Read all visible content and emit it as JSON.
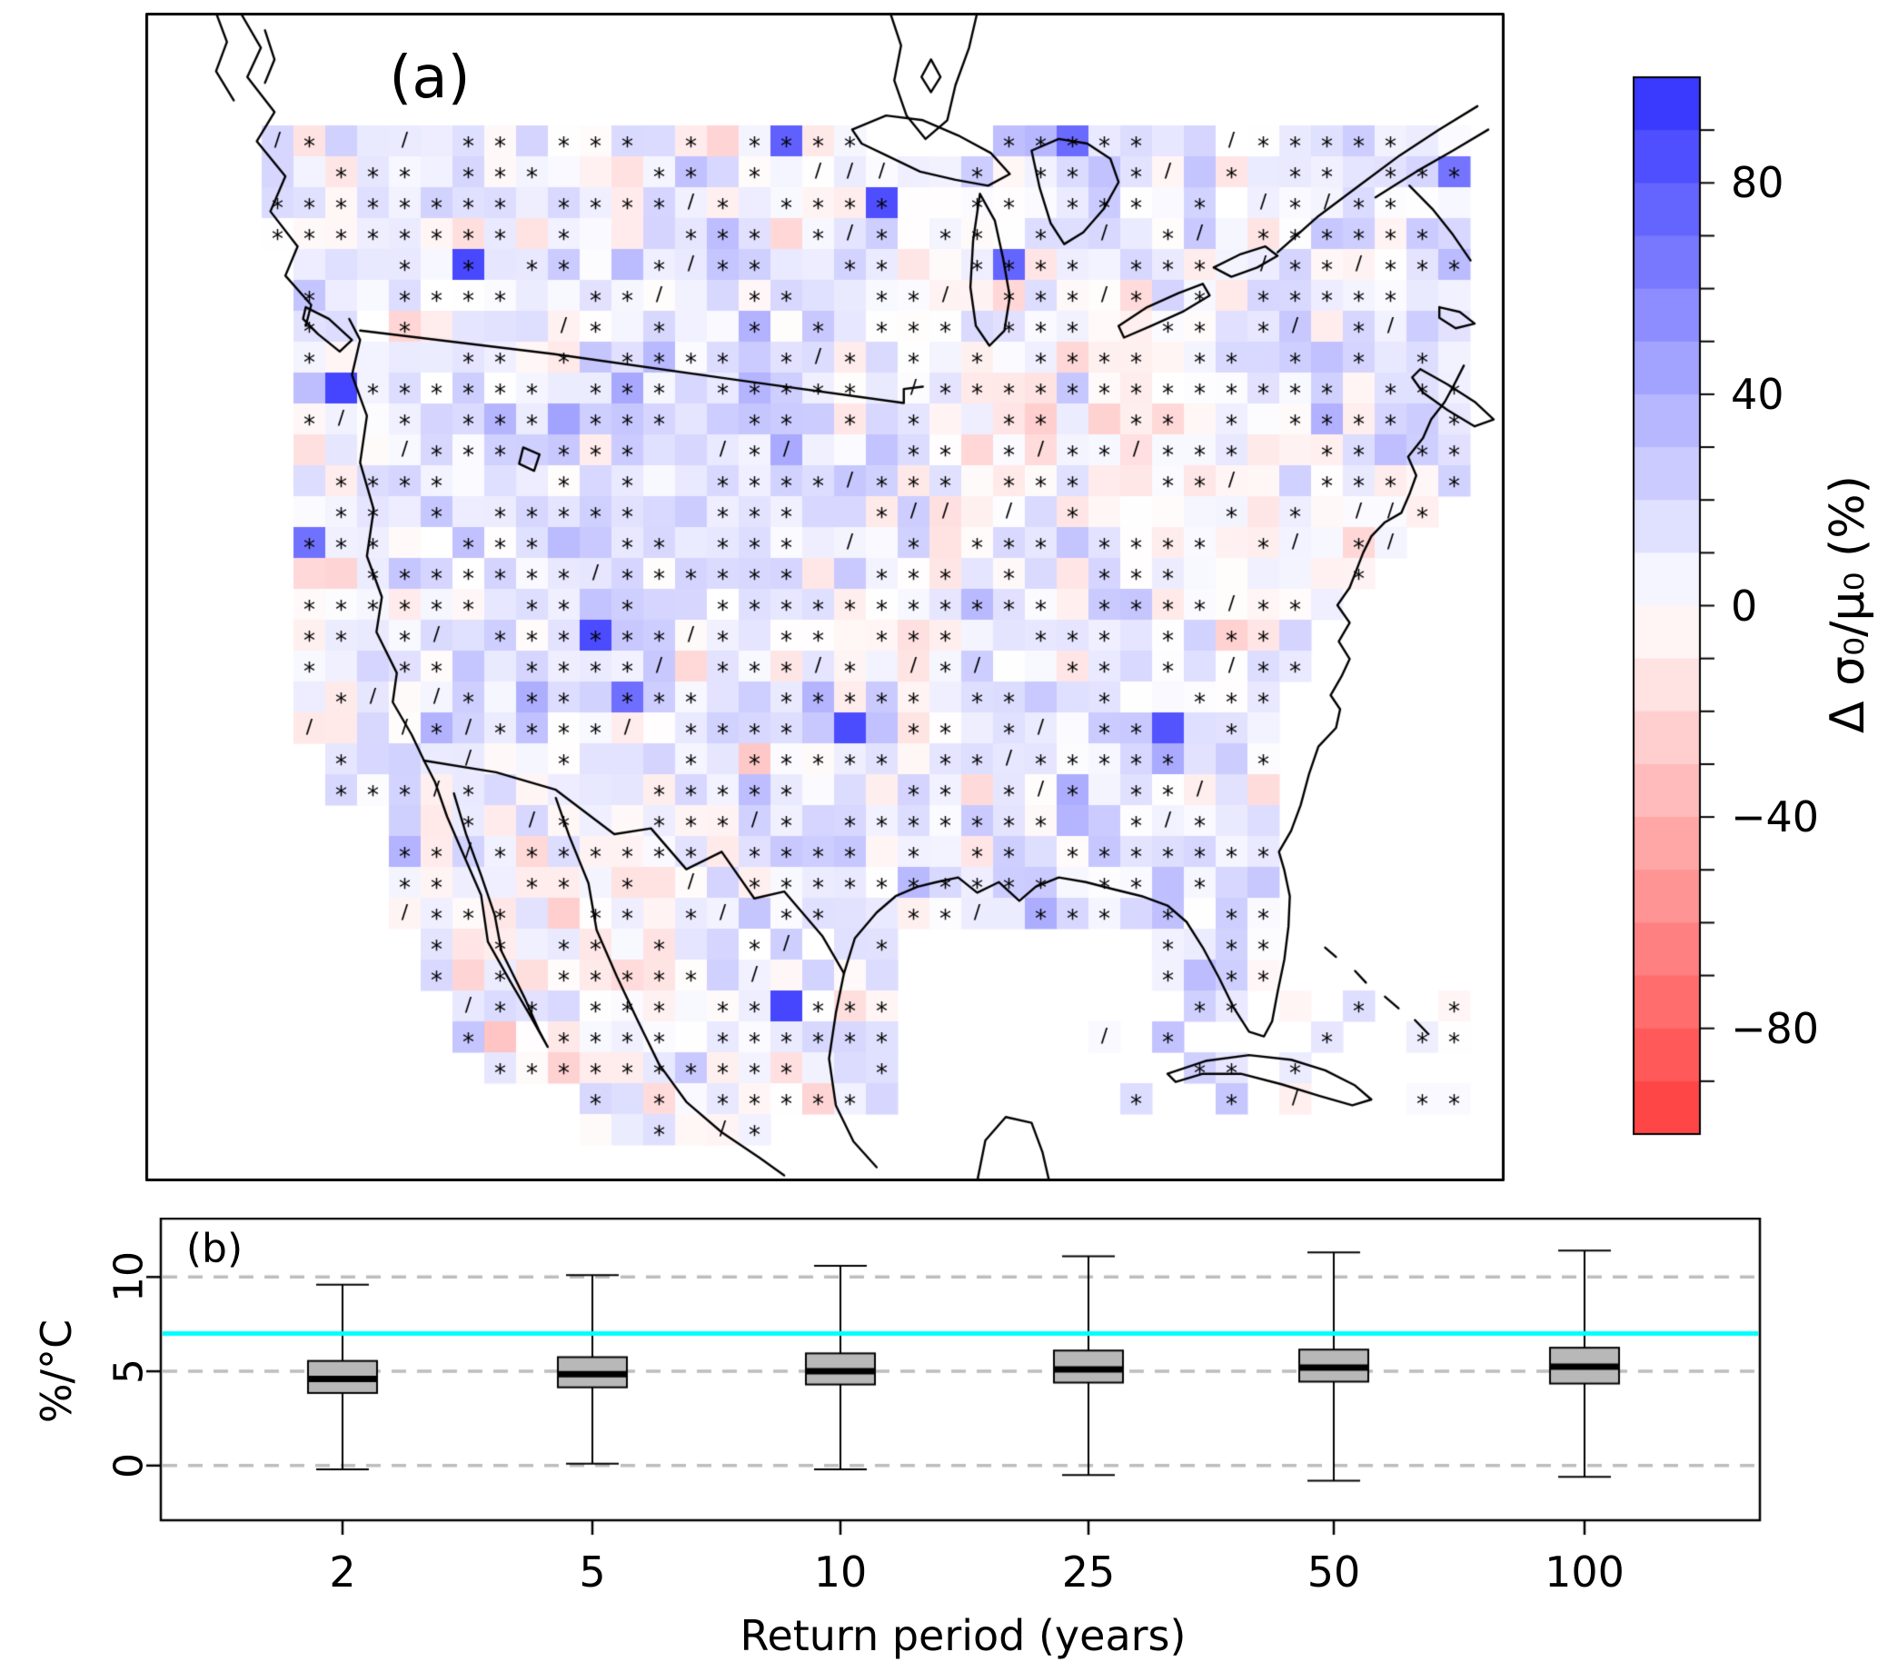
{
  "figure": {
    "panel_a_label": "(a)",
    "panel_b_label": "(b)"
  },
  "chart_data": [
    {
      "type": "heatmap",
      "title": "",
      "panel": "a",
      "description_text": "",
      "significance_markers": [
        "*",
        "/"
      ],
      "colorbar": {
        "label": "Δ σ₀/μ₀ (%)",
        "tick_values": [
          80,
          40,
          0,
          -40,
          -80
        ],
        "tick_labels": [
          "80",
          "40",
          "0",
          "−40",
          "−80"
        ],
        "minor_tick_interval": 10,
        "vmin": -100,
        "vmax": 100,
        "positive_color": "#2020ff",
        "zero_color": "#ffffff",
        "negative_color": "#ff2020"
      }
    },
    {
      "type": "boxplot",
      "panel": "b",
      "categories": [
        "2",
        "5",
        "10",
        "25",
        "50",
        "100"
      ],
      "xlabel": "Return period (years)",
      "ylabel": "%/°C",
      "y_tick_values": [
        0,
        5,
        10
      ],
      "y_tick_labels": [
        "0",
        "5",
        "10"
      ],
      "ylim": [
        -2.9,
        13.1
      ],
      "dashed_reference_lines": [
        0,
        5,
        10
      ],
      "dashed_line_color": "#bdbdbd",
      "cc_line_value": 7,
      "cc_line_color": "#00ffff",
      "box_fill": "#b8b8b8",
      "series": [
        {
          "category": "2",
          "whisker_low": -0.2,
          "q1": 3.85,
          "median": 4.6,
          "q3": 5.55,
          "whisker_high": 9.6
        },
        {
          "category": "5",
          "whisker_low": 0.1,
          "q1": 4.15,
          "median": 4.85,
          "q3": 5.75,
          "whisker_high": 10.1
        },
        {
          "category": "10",
          "whisker_low": -0.2,
          "q1": 4.3,
          "median": 5.0,
          "q3": 5.95,
          "whisker_high": 10.6
        },
        {
          "category": "25",
          "whisker_low": -0.5,
          "q1": 4.4,
          "median": 5.1,
          "q3": 6.1,
          "whisker_high": 11.1
        },
        {
          "category": "50",
          "whisker_low": -0.8,
          "q1": 4.45,
          "median": 5.2,
          "q3": 6.15,
          "whisker_high": 11.3
        },
        {
          "category": "100",
          "whisker_low": -0.6,
          "q1": 4.35,
          "median": 5.25,
          "q3": 6.25,
          "whisker_high": 11.4
        }
      ]
    }
  ]
}
